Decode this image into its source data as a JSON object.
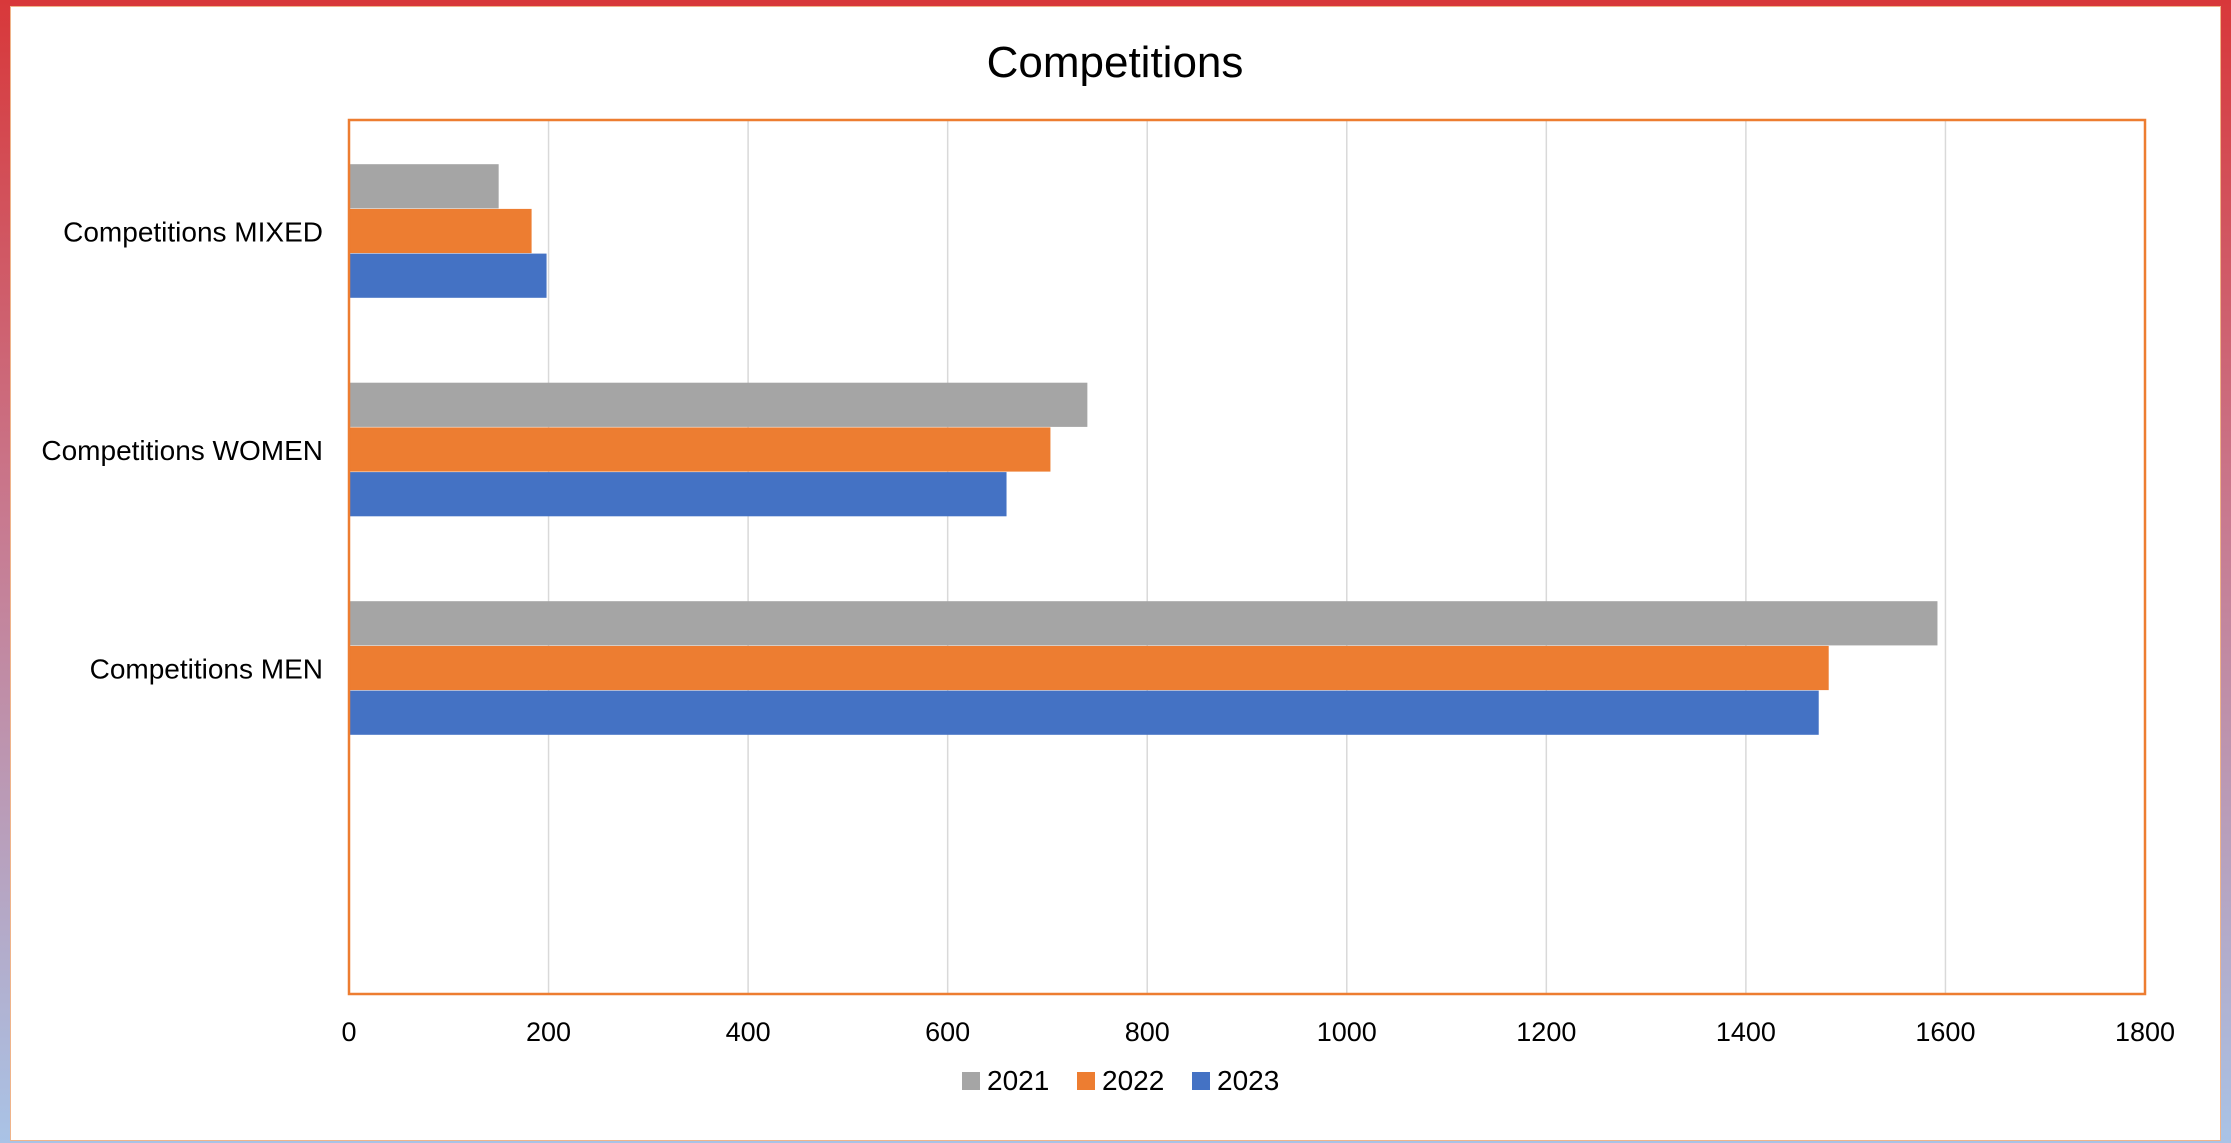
{
  "chart_data": {
    "type": "bar",
    "orientation": "horizontal",
    "title": "Competitions",
    "xlabel": "",
    "ylabel": "",
    "categories": [
      "Competitions MEN",
      "Competitions WOMEN",
      "Competitions MIXED"
    ],
    "series": [
      {
        "name": "2021",
        "color": "#a5a5a5",
        "values": [
          1592,
          740,
          150
        ]
      },
      {
        "name": "2022",
        "color": "#ed7d31",
        "values": [
          1483,
          703,
          183
        ]
      },
      {
        "name": "2023",
        "color": "#4472c4",
        "values": [
          1473,
          659,
          198
        ]
      }
    ],
    "xlim": [
      0,
      1800
    ],
    "ticks": [
      "0",
      "200",
      "400",
      "600",
      "800",
      "1000",
      "1200",
      "1400",
      "1600",
      "1800"
    ],
    "grid": "vertical",
    "legend": "bottom",
    "plot_border_color": "#ed7d31"
  }
}
